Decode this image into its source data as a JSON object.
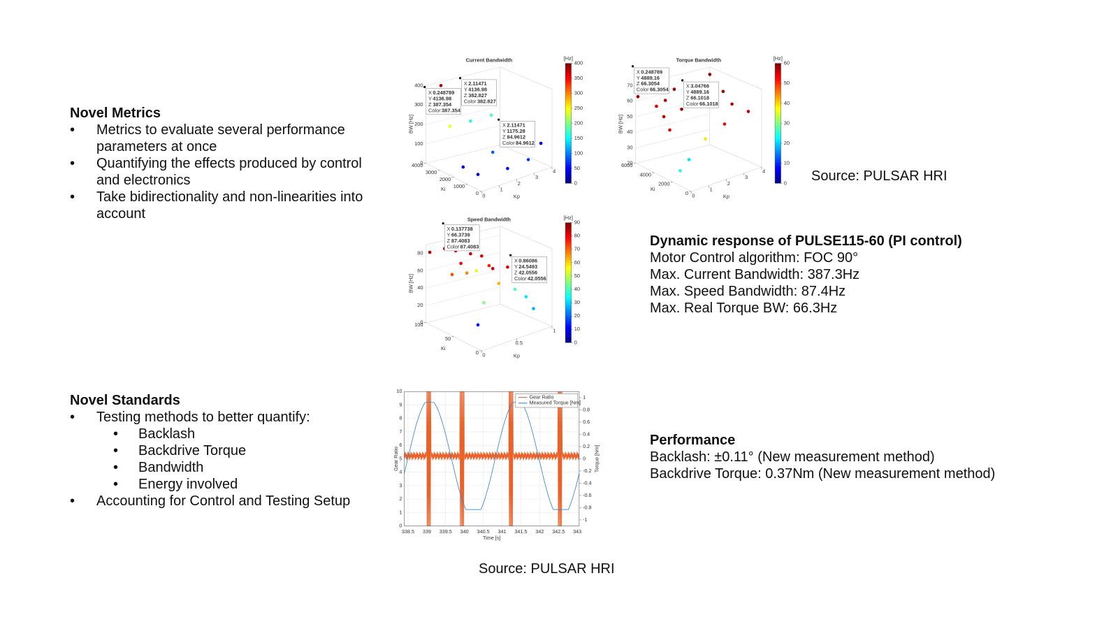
{
  "novel_metrics": {
    "title": "Novel Metrics",
    "bullets": [
      "Metrics to evaluate several performance parameters at once",
      "Quantifying the effects produced by control and electronics",
      "Take bidirectionality and non-linearities into account"
    ]
  },
  "novel_standards": {
    "title": "Novel Standards",
    "bullets": [
      "Testing methods to better quantify:",
      "Accounting for Control and Testing Setup"
    ],
    "sub_bullets": [
      "Backlash",
      "Backdrive Torque",
      "Bandwidth",
      "Energy involved"
    ]
  },
  "dynamic_response": {
    "title": "Dynamic response of PULSE115-60 (PI control)",
    "lines": [
      "Motor Control algorithm:  FOC 90°",
      "Max. Current Bandwidth: 387.3Hz",
      "Max. Speed Bandwidth: 87.4Hz",
      "Max. Real Torque BW: 66.3Hz"
    ]
  },
  "performance": {
    "title": "Performance",
    "lines": [
      "Backlash: ±0.11° (New measurement method)",
      "Backdrive Torque: 0.37Nm (New measurement method)"
    ]
  },
  "sources": [
    "Source: PULSAR HRI",
    "Source: PULSAR HRI"
  ],
  "figures": [
    {
      "title": "Current Bandwidth",
      "unit": "[Hz]",
      "zlabel": "BW [Hz]",
      "xlabel": "Kp",
      "ylabel": "Ki",
      "zlim": [
        0,
        400
      ],
      "zticks": [
        0,
        100,
        200,
        300,
        400
      ],
      "ylim": [
        0,
        4000
      ],
      "yticks": [
        0,
        1000,
        2000,
        3000,
        4000
      ],
      "xlim": [
        0,
        4
      ],
      "xticks": [
        0,
        1,
        2,
        3,
        4
      ],
      "clim": [
        0,
        400
      ],
      "cticks": [
        0,
        50,
        100,
        150,
        200,
        250,
        300,
        350,
        400
      ],
      "datatips": [
        [
          [
            "X",
            0.248789
          ],
          [
            "Y",
            4136.98
          ],
          [
            "Z",
            387.354
          ],
          [
            "Color",
            387.354
          ]
        ],
        [
          [
            "X",
            2.11471
          ],
          [
            "Y",
            4136.98
          ],
          [
            "Z",
            382.827
          ],
          [
            "Color",
            382.827
          ]
        ],
        [
          [
            "X",
            2.11471
          ],
          [
            "Y",
            1175.28
          ],
          [
            "Z",
            84.9612
          ],
          [
            "Color",
            84.9612
          ]
        ]
      ]
    },
    {
      "title": "Torque Bandwidth",
      "unit": "[Hz]",
      "zlabel": "BW [Hz]",
      "xlabel": "Kp",
      "ylabel": "Ki",
      "zlim": [
        20,
        70
      ],
      "zticks": [
        20,
        30,
        40,
        50,
        60,
        70
      ],
      "ylim": [
        0,
        6000
      ],
      "yticks": [
        0,
        2000,
        4000,
        6000
      ],
      "xlim": [
        0,
        4
      ],
      "xticks": [
        0,
        1,
        2,
        3,
        4
      ],
      "clim": [
        0,
        60
      ],
      "cticks": [
        0,
        10,
        20,
        30,
        40,
        50,
        60
      ],
      "datatips": [
        [
          [
            "X",
            0.248789
          ],
          [
            "Y",
            4889.16
          ],
          [
            "Z",
            66.3054
          ],
          [
            "Color",
            66.3054
          ]
        ],
        [
          [
            "X",
            3.04766
          ],
          [
            "Y",
            4889.16
          ],
          [
            "Z",
            66.1018
          ],
          [
            "Color",
            66.1018
          ]
        ]
      ]
    },
    {
      "title": "Speed Bandwidth",
      "unit": "[Hz]",
      "zlabel": "BW [Hz]",
      "xlabel": "Kp",
      "ylabel": "Ki",
      "zlim": [
        0,
        90
      ],
      "zticks": [
        0,
        20,
        40,
        60,
        80
      ],
      "ylim": [
        0,
        100
      ],
      "yticks": [
        0,
        50,
        100
      ],
      "xlim": [
        0,
        1
      ],
      "xticks": [
        0,
        0.5,
        1
      ],
      "clim": [
        0,
        90
      ],
      "cticks": [
        0,
        10,
        20,
        30,
        40,
        50,
        60,
        70,
        80,
        90
      ],
      "datatips": [
        [
          [
            "X",
            0.137738
          ],
          [
            "Y",
            66.3739
          ],
          [
            "Z",
            87.4083
          ],
          [
            "Color",
            87.4083
          ]
        ],
        [
          [
            "X",
            0.86086
          ],
          [
            "Y",
            24.5493
          ],
          [
            "Z",
            42.0556
          ],
          [
            "Color",
            42.0556
          ]
        ]
      ]
    }
  ],
  "gear_plot": {
    "xlabel": "Time [s]",
    "ylabel": "Gear Ratio",
    "y2label": "Torque [Nm]",
    "legend": [
      "Gear Ratio",
      "Measured Torque [Nm]"
    ],
    "colors": [
      "#e8622a",
      "#2f84c8"
    ],
    "xlim": [
      338.4,
      343.05
    ],
    "xticks": [
      338.5,
      339,
      339.5,
      340,
      340.5,
      341,
      341.5,
      342,
      342.5,
      343
    ],
    "ylim": [
      0,
      10
    ],
    "yticks": [
      0,
      1,
      2,
      3,
      4,
      5,
      6,
      7,
      8,
      9,
      10
    ],
    "y2lim": [
      -1.1,
      1.1
    ],
    "y2ticks": [
      -1,
      -0.8,
      -0.6,
      -0.4,
      -0.2,
      0,
      0.2,
      0.4,
      0.6,
      0.8,
      1
    ]
  }
}
